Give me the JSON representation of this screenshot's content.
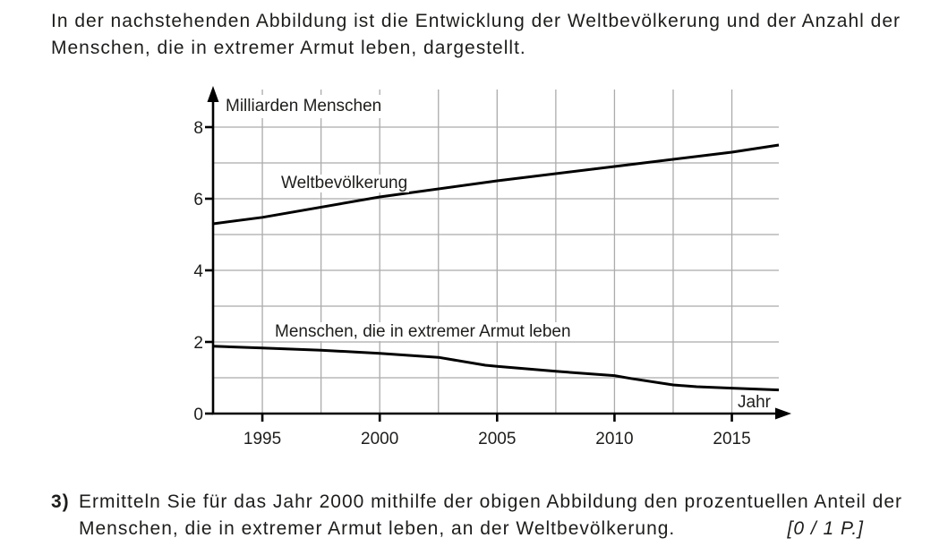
{
  "page": {
    "intro_text": "In der nachstehenden Abbildung ist die Entwicklung der Weltbevölkerung und der Anzahl der\nMenschen, die in extremer Armut leben, dargestellt.",
    "question": {
      "number": "3)",
      "text": "Ermitteln Sie für das Jahr 2000 mithilfe der obigen Abbildung den prozentuellen Anteil der\nMenschen, die in extremer Armut leben, an der Weltbevölkerung.",
      "points": "[0 / 1 P.]"
    }
  },
  "chart_data": {
    "type": "line",
    "title": "",
    "y_axis_label": "Milliarden Menschen",
    "x_axis_label": "Jahr",
    "x_range": [
      1992.9,
      2017
    ],
    "y_range": [
      0,
      9
    ],
    "x_ticks": [
      1995,
      2000,
      2005,
      2010,
      2015
    ],
    "y_ticks": [
      0,
      2,
      4,
      6,
      8
    ],
    "x_grid_step": 2.5,
    "y_grid_step": 1,
    "grid": true,
    "grid_color": "#ababab",
    "line_color": "#000000",
    "text_color": "#1d1d1b",
    "series": [
      {
        "name": "Weltbevölkerung",
        "points": [
          [
            1992.9,
            5.3
          ],
          [
            1995,
            5.48
          ],
          [
            2000,
            6.05
          ],
          [
            2005,
            6.5
          ],
          [
            2010,
            6.9
          ],
          [
            2015,
            7.3
          ],
          [
            2017,
            7.5
          ]
        ]
      },
      {
        "name": "Menschen, die in extremer Armut leben",
        "points": [
          [
            1992.9,
            1.88
          ],
          [
            1995,
            1.83
          ],
          [
            1997.5,
            1.77
          ],
          [
            2000,
            1.68
          ],
          [
            2002.5,
            1.57
          ],
          [
            2004.5,
            1.35
          ],
          [
            2005,
            1.32
          ],
          [
            2007.5,
            1.18
          ],
          [
            2010,
            1.06
          ],
          [
            2010.7,
            0.98
          ],
          [
            2012.5,
            0.8
          ],
          [
            2013.5,
            0.75
          ],
          [
            2015,
            0.71
          ],
          [
            2017,
            0.66
          ]
        ]
      }
    ]
  }
}
